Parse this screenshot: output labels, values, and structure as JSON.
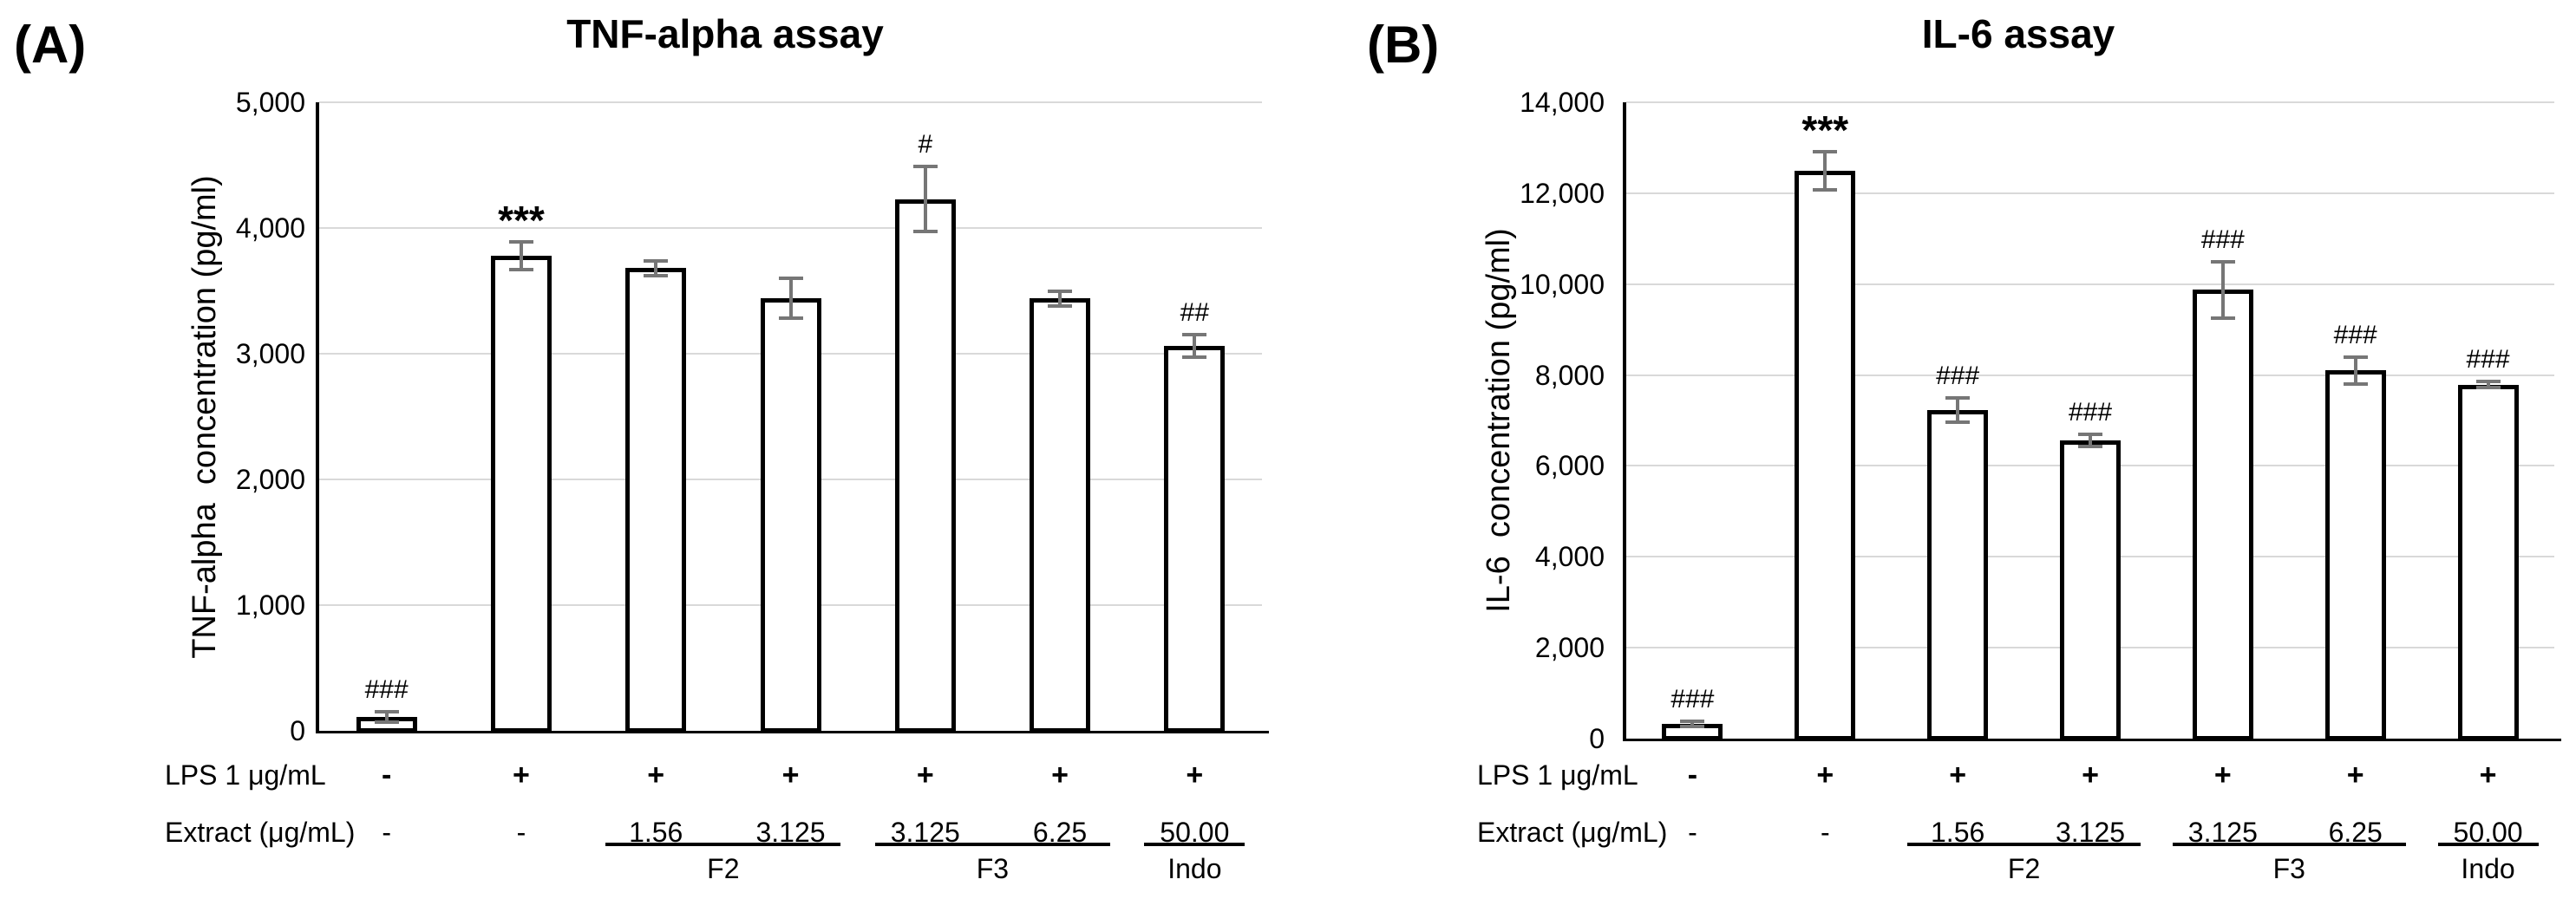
{
  "figure": {
    "panel_a_label": "(A)",
    "panel_b_label": "(B)"
  },
  "colors": {
    "grid": "#d9d9d9",
    "axis": "#000000",
    "bar_fill": "#ffffff",
    "bar_border": "#000000",
    "error_bar": "#767676",
    "text": "#000000"
  },
  "chart_data": [
    {
      "type": "bar",
      "panel_label": "(A)",
      "title": "TNF-alpha assay",
      "ylabel": "TNF-alpha  concentration (pg/ml)",
      "ylim": [
        0,
        5000
      ],
      "grid": true,
      "legend": "none",
      "ytick_values": [
        5000,
        4000,
        3000,
        2000,
        1000,
        0
      ],
      "ytick_labels": [
        "5,000",
        "4,000",
        "3,000",
        "2,000",
        "1,000",
        "0"
      ],
      "x_rows": [
        {
          "label": "LPS 1 μg/mL",
          "values": [
            "-",
            "+",
            "+",
            "+",
            "+",
            "+",
            "+"
          ]
        },
        {
          "label": "Extract (μg/mL)",
          "values": [
            "-",
            "-",
            "1.56",
            "3.125",
            "3.125",
            "6.25",
            "50.00"
          ]
        }
      ],
      "values": [
        110,
        3780,
        3680,
        3440,
        4230,
        3440,
        3060
      ],
      "errors": [
        40,
        110,
        60,
        160,
        260,
        60,
        90
      ],
      "annotations": [
        "###",
        "***",
        "",
        "",
        "#",
        "",
        "##"
      ],
      "groups": [
        {
          "label": "F2",
          "from": 2,
          "to": 3
        },
        {
          "label": "F3",
          "from": 4,
          "to": 5
        },
        {
          "label": "Indo",
          "from": 6,
          "to": 6
        }
      ]
    },
    {
      "type": "bar",
      "panel_label": "(B)",
      "title": "IL-6 assay",
      "ylabel": "IL-6  concentration (pg/ml)",
      "ylim": [
        0,
        14000
      ],
      "grid": true,
      "legend": "none",
      "ytick_values": [
        14000,
        12000,
        10000,
        8000,
        6000,
        4000,
        2000,
        0
      ],
      "ytick_labels": [
        "14,000",
        "12,000",
        "10,000",
        "8,000",
        "6,000",
        "4,000",
        "2,000",
        "0"
      ],
      "x_rows": [
        {
          "label": "LPS 1 μg/mL",
          "values": [
            "-",
            "+",
            "+",
            "+",
            "+",
            "+",
            "+"
          ]
        },
        {
          "label": "Extract (μg/mL)",
          "values": [
            "-",
            "-",
            "1.56",
            "3.125",
            "3.125",
            "6.25",
            "50.00"
          ]
        }
      ],
      "values": [
        330,
        12500,
        7230,
        6560,
        9880,
        8100,
        7790
      ],
      "errors": [
        60,
        420,
        260,
        130,
        620,
        290,
        70
      ],
      "annotations": [
        "###",
        "***",
        "###",
        "###",
        "###",
        "###",
        "###"
      ],
      "groups": [
        {
          "label": "F2",
          "from": 2,
          "to": 3
        },
        {
          "label": "F3",
          "from": 4,
          "to": 5
        },
        {
          "label": "Indo",
          "from": 6,
          "to": 6
        }
      ]
    }
  ]
}
